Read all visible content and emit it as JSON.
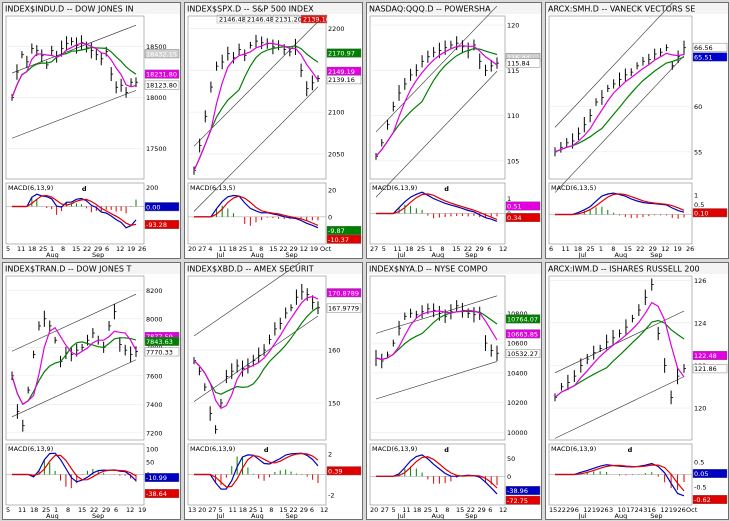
{
  "panels": [
    {
      "id": "dji",
      "title": "INDEX$INDU.D -- DOW JONES IN",
      "price_ylim": [
        17200,
        18800
      ],
      "price_ticks": [
        18500,
        18000,
        17500
      ],
      "badges": [
        {
          "text": "18432.15",
          "value": 18432.15,
          "color": "#ffffff",
          "bg": "#d0d0d0"
        },
        {
          "text": "18231.80",
          "value": 18231.8,
          "color": "#ffffff",
          "bg": "#e000e0"
        },
        {
          "text": "18123.80",
          "value": 18123.8,
          "color": "#000000",
          "bg": "#ffffff"
        }
      ],
      "macd_label": "MACD(6,13,9)",
      "macd_ylim": [
        -400,
        250
      ],
      "macd_ticks": [
        200,
        0
      ],
      "macd_badges": [
        {
          "text": "0.00",
          "value": 0,
          "color": "#ffffff",
          "bg": "#0000c0"
        },
        {
          "text": "-93.28",
          "value": -93.28,
          "color": "#ffffff",
          "bg": "#e00000"
        }
      ],
      "annotations": [
        {
          "text": "d",
          "color": "#e00000"
        }
      ],
      "x_labels": [
        "5",
        "11",
        "18",
        "25",
        "1",
        "8",
        "15",
        "22",
        "29",
        "6",
        "12",
        "19",
        "26"
      ],
      "month_labels": [
        "Aug",
        "Sep"
      ],
      "series": [
        18000,
        18250,
        18420,
        18350,
        18480,
        18460,
        18410,
        18320,
        18460,
        18400,
        18480,
        18530,
        18550,
        18510,
        18540,
        18495,
        18460,
        18420,
        18380,
        18450,
        18230,
        18100,
        18120,
        18050,
        18150,
        18150
      ]
    },
    {
      "id": "spx",
      "title": "INDEX$SPX.D -- S&P 500 INDEX",
      "top_values": [
        "2146.48",
        "2146.48",
        "2131.20",
        "2139.16"
      ],
      "price_ylim": [
        2020,
        2215
      ],
      "price_ticks": [
        2200,
        2150,
        2100,
        2050
      ],
      "badges": [
        {
          "text": "2170.97",
          "value": 2170.97,
          "color": "#ffffff",
          "bg": "#008000"
        },
        {
          "text": "2149.19",
          "value": 2149.19,
          "color": "#ffffff",
          "bg": "#e000e0"
        },
        {
          "text": "2139.16",
          "value": 2139.16,
          "color": "#000000",
          "bg": "#ffffff"
        }
      ],
      "macd_label": "MACD(6,13,5)",
      "macd_ylim": [
        -20,
        25
      ],
      "macd_ticks": [
        20,
        0
      ],
      "macd_badges": [
        {
          "text": "-9.87",
          "value": -9.87,
          "color": "#ffffff",
          "bg": "#008000"
        },
        {
          "text": "-10.37",
          "value": -10.37,
          "color": "#ffffff",
          "bg": "#e00000"
        }
      ],
      "annotations": [],
      "x_labels": [
        "20",
        "27",
        "4",
        "11",
        "18",
        "25",
        "1",
        "8",
        "15",
        "22",
        "29",
        "12",
        "19",
        "Oct"
      ],
      "month_labels": [
        "Jul",
        "Aug",
        "Sep"
      ],
      "series": [
        2030,
        2060,
        2095,
        2130,
        2155,
        2160,
        2170,
        2165,
        2175,
        2168,
        2180,
        2185,
        2183,
        2182,
        2178,
        2180,
        2175,
        2172,
        2178,
        2150,
        2128,
        2135,
        2140
      ]
    },
    {
      "id": "qqq",
      "title": "NASDAQ:QQQ.D -- POWERSHA",
      "price_ylim": [
        103,
        121
      ],
      "price_ticks": [
        120,
        115,
        110,
        105
      ],
      "badges": [
        {
          "text": "116.44",
          "value": 116.44,
          "color": "#ffffff",
          "bg": "#d0d0d0"
        },
        {
          "text": "115.84",
          "value": 115.84,
          "color": "#000000",
          "bg": "#ffffff"
        }
      ],
      "macd_label": "MACD(6,13,9)",
      "macd_ylim": [
        -2,
        2
      ],
      "macd_ticks": [
        1,
        0
      ],
      "macd_badges": [
        {
          "text": "0.51",
          "value": 0.51,
          "color": "#ffffff",
          "bg": "#e000e0"
        },
        {
          "text": "0.34",
          "value": 0.34,
          "color": "#ffffff",
          "bg": "#e00000"
        }
      ],
      "annotations": [
        {
          "text": "d",
          "color": "#e00000"
        }
      ],
      "x_labels": [
        "27",
        "5",
        "11",
        "18",
        "25",
        "1",
        "8",
        "15",
        "22",
        "29",
        "6",
        "12"
      ],
      "month_labels": [
        "Jul",
        "Aug",
        "Sep"
      ],
      "series": [
        105.5,
        107,
        109,
        111,
        112.5,
        113.5,
        114.5,
        115,
        116,
        116.5,
        117,
        117.2,
        117.5,
        117.8,
        118,
        117.6,
        117.2,
        117.8,
        116,
        115,
        115.5,
        115.8
      ]
    },
    {
      "id": "smh",
      "title": "ARCX:SMH.D -- VANECK VECTORS SE",
      "price_ylim": [
        52,
        70
      ],
      "price_ticks": [
        60.0,
        55.0
      ],
      "badges": [
        {
          "text": "66.56",
          "value": 66.56,
          "color": "#000000",
          "bg": "#ffffff"
        },
        {
          "text": "65.51",
          "value": 65.51,
          "color": "#ffffff",
          "bg": "#0000d0"
        }
      ],
      "macd_label": "MACD(6,13,5)",
      "macd_ylim": [
        -1.5,
        1.6
      ],
      "macd_ticks": [
        1.0,
        0.5
      ],
      "macd_badges": [
        {
          "text": "0.10",
          "value": 0.1,
          "color": "#ffffff",
          "bg": "#e00000"
        }
      ],
      "annotations": [],
      "x_labels": [
        "6",
        "11",
        "18",
        "25",
        "1",
        "8",
        "15",
        "22",
        "29",
        "12",
        "19",
        "26"
      ],
      "month_labels": [
        "Jul",
        "Aug",
        "Sep"
      ],
      "series": [
        55,
        55.5,
        56,
        56.2,
        57,
        58,
        59,
        60.5,
        61,
        62,
        62.5,
        63,
        63.5,
        63.8,
        64.5,
        65,
        65.2,
        65.8,
        66,
        66.5,
        64.5,
        65.5,
        66.5
      ]
    },
    {
      "id": "tran",
      "title": "INDEX$TRAN.D -- DOW JONES T",
      "price_ylim": [
        7150,
        8300
      ],
      "price_ticks": [
        8200,
        8000,
        7800,
        7600,
        7400,
        7200
      ],
      "badges": [
        {
          "text": "7877.59",
          "value": 7877.59,
          "color": "#ffffff",
          "bg": "#e000e0"
        },
        {
          "text": "7843.63",
          "value": 7843.63,
          "color": "#ffffff",
          "bg": "#008000"
        },
        {
          "text": "7770.33",
          "value": 7770.33,
          "color": "#000000",
          "bg": "#ffffff"
        }
      ],
      "macd_label": "MACD(6,13,9)",
      "macd_ylim": [
        -120,
        120
      ],
      "macd_ticks": [
        100,
        50,
        0
      ],
      "macd_badges": [
        {
          "text": "-10.99",
          "value": -10.99,
          "color": "#ffffff",
          "bg": "#0000c0"
        },
        {
          "text": "-38.64",
          "value": -38.64,
          "color": "#ffffff",
          "bg": "#e00000"
        }
      ],
      "annotations": [],
      "x_labels": [
        "5",
        "11",
        "18",
        "25",
        "1",
        "8",
        "15",
        "22",
        "29",
        "6",
        "12",
        "19"
      ],
      "month_labels": [
        "Aug",
        "Sep"
      ],
      "series": [
        7600,
        7350,
        7250,
        7500,
        7750,
        7950,
        8000,
        7950,
        7850,
        7700,
        7760,
        7750,
        7780,
        7800,
        7850,
        7900,
        7850,
        7800,
        7950,
        8050,
        7820,
        7780,
        7750,
        7770
      ]
    },
    {
      "id": "xbd",
      "title": "INDEX$XBD.D -- AMEX SECURIT",
      "price_ylim": [
        143,
        174
      ],
      "price_ticks": [
        160.0,
        150.0
      ],
      "badges": [
        {
          "text": "170.8789",
          "value": 170.8789,
          "color": "#ffffff",
          "bg": "#e000e0"
        },
        {
          "text": "167.9779",
          "value": 167.9779,
          "color": "#000000",
          "bg": "#ffffff"
        }
      ],
      "macd_label": "MACD(6,13,9)",
      "macd_ylim": [
        -3,
        3
      ],
      "macd_ticks": [
        2.0,
        -2.0
      ],
      "macd_badges": [
        {
          "text": "0.39",
          "value": 0.39,
          "color": "#ffffff",
          "bg": "#e00000"
        }
      ],
      "annotations": [
        {
          "text": "d",
          "color": "#e00000"
        }
      ],
      "x_labels": [
        "13",
        "20",
        "27",
        "5",
        "11",
        "18",
        "25",
        "1",
        "8",
        "15",
        "22",
        "29",
        "6",
        "12"
      ],
      "month_labels": [
        "Jul",
        "Aug",
        "Sep"
      ],
      "series": [
        158,
        156,
        153,
        148,
        145,
        150,
        155,
        156,
        157,
        156.5,
        157,
        158,
        159,
        160,
        162,
        164,
        165,
        167,
        168,
        170,
        171,
        170.5,
        169,
        168
      ]
    },
    {
      "id": "nya",
      "title": "INDEX$NYA.D -- NYSE COMPO",
      "price_ylim": [
        9950,
        11050
      ],
      "price_ticks": [
        10800,
        10600,
        10400,
        10200,
        10000
      ],
      "badges": [
        {
          "text": "10764.07",
          "value": 10764.07,
          "color": "#ffffff",
          "bg": "#008000"
        },
        {
          "text": "10663.85",
          "value": 10663.85,
          "color": "#ffffff",
          "bg": "#e000e0"
        },
        {
          "text": "10532.27",
          "value": 10532.27,
          "color": "#000000",
          "bg": "#ffffff"
        }
      ],
      "macd_label": "MACD(6,13,9)",
      "macd_ylim": [
        -80,
        90
      ],
      "macd_ticks": [
        50,
        0
      ],
      "macd_badges": [
        {
          "text": "-38.96",
          "value": -38.96,
          "color": "#ffffff",
          "bg": "#0000c0"
        },
        {
          "text": "-72.75",
          "value": -72.75,
          "color": "#ffffff",
          "bg": "#e00000"
        }
      ],
      "annotations": [
        {
          "text": "d",
          "color": "#000000"
        }
      ],
      "x_labels": [
        "20",
        "27",
        "5",
        "11",
        "18",
        "25",
        "1",
        "8",
        "15",
        "22",
        "29",
        "6",
        "12"
      ],
      "month_labels": [
        "Jul",
        "Aug",
        "Sep"
      ],
      "series": [
        10500,
        10480,
        10520,
        10600,
        10700,
        10780,
        10800,
        10790,
        10810,
        10830,
        10820,
        10800,
        10780,
        10810,
        10850,
        10820,
        10800,
        10790,
        10800,
        10600,
        10550,
        10532
      ]
    },
    {
      "id": "iwm",
      "title": "ARCX:IWM.D -- ISHARES RUSSELL 200",
      "price_ylim": [
        118.5,
        126.2
      ],
      "price_ticks": [
        126.0,
        124.0,
        122.0,
        120.0
      ],
      "badges": [
        {
          "text": "122.48",
          "value": 122.48,
          "color": "#ffffff",
          "bg": "#e000e0"
        },
        {
          "text": "121.86",
          "value": 121.86,
          "color": "#000000",
          "bg": "#ffffff"
        }
      ],
      "macd_label": "MACD(6,13,9)",
      "macd_ylim": [
        -1.2,
        1.2
      ],
      "macd_ticks": [
        0.5,
        0.0,
        -0.5
      ],
      "macd_badges": [
        {
          "text": "0.05",
          "value": 0.05,
          "color": "#ffffff",
          "bg": "#0000c0"
        },
        {
          "text": "-0.62",
          "value": -0.62,
          "color": "#ffffff",
          "bg": "#e00000"
        }
      ],
      "annotations": [
        {
          "text": "d",
          "color": "#000000"
        }
      ],
      "x_labels": [
        "15",
        "22",
        "29",
        "6",
        "12",
        "19",
        "26",
        "3",
        "10",
        "17",
        "24",
        "31",
        "6",
        "12",
        "19",
        "26",
        "Oct"
      ],
      "month_labels": [
        "Jul",
        "Aug",
        "Sep"
      ],
      "series": [
        120.5,
        121,
        121.2,
        121.5,
        122,
        122.3,
        122.6,
        122.8,
        123.1,
        123.3,
        123.5,
        123.8,
        124.2,
        124.6,
        125.2,
        125.8,
        123.5,
        122,
        120.5,
        121.5,
        121.86
      ]
    }
  ]
}
